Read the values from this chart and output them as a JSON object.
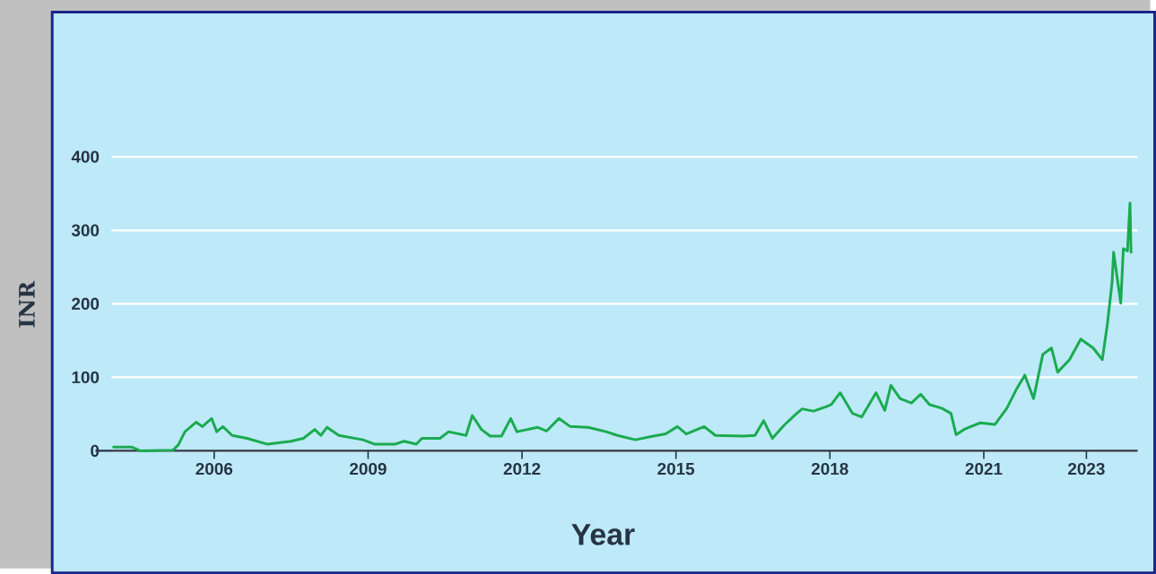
{
  "chart_data": {
    "type": "line",
    "xlabel": "Year",
    "ylabel": "INR",
    "x": [
      2004.04,
      2004.4,
      2004.56,
      2005.2,
      2005.3,
      2005.43,
      2005.65,
      2005.77,
      2005.95,
      2006.05,
      2006.17,
      2006.35,
      2006.64,
      2007.04,
      2007.5,
      2007.74,
      2007.96,
      2008.08,
      2008.2,
      2008.43,
      2008.9,
      2009.13,
      2009.52,
      2009.7,
      2009.94,
      2010.05,
      2010.4,
      2010.57,
      2010.91,
      2011.03,
      2011.21,
      2011.38,
      2011.6,
      2011.78,
      2011.9,
      2012.3,
      2012.48,
      2012.72,
      2012.94,
      2013.29,
      2013.64,
      2013.86,
      2014.21,
      2014.56,
      2014.8,
      2015.03,
      2015.2,
      2015.55,
      2015.77,
      2016.3,
      2016.54,
      2016.71,
      2016.88,
      2017.11,
      2017.34,
      2017.46,
      2017.68,
      2017.93,
      2018.03,
      2018.2,
      2018.44,
      2018.62,
      2018.9,
      2019.07,
      2019.19,
      2019.37,
      2019.59,
      2019.77,
      2019.94,
      2020.18,
      2020.36,
      2020.46,
      2020.64,
      2020.93,
      2021.22,
      2021.45,
      2021.63,
      2021.8,
      2021.97,
      2022.15,
      2022.32,
      2022.44,
      2022.67,
      2022.89,
      2023.13,
      2023.31,
      2023.41,
      2023.5,
      2023.53,
      2023.67,
      2023.72,
      2023.8,
      2023.85,
      2023.87
    ],
    "series": [
      {
        "color": "#1aab4f",
        "values": [
          5,
          5,
          0,
          1,
          8,
          26,
          39,
          33,
          44,
          26,
          33,
          21,
          17,
          9,
          13,
          17,
          29,
          21,
          32,
          21,
          15,
          9,
          9,
          13,
          9,
          17,
          17,
          26,
          21,
          48,
          29,
          20,
          20,
          44,
          26,
          32,
          27,
          44,
          33,
          32,
          26,
          21,
          15,
          20,
          23,
          33,
          23,
          33,
          21,
          20,
          21,
          41,
          17,
          35,
          50,
          57,
          54,
          60,
          63,
          79,
          51,
          46,
          79,
          55,
          89,
          71,
          65,
          77,
          63,
          58,
          51,
          22,
          30,
          38,
          36,
          58,
          83,
          103,
          71,
          131,
          140,
          107,
          124,
          152,
          140,
          124,
          173,
          229,
          270,
          201,
          275,
          272,
          337,
          270
        ]
      }
    ],
    "xlim": [
      2004,
      2024
    ],
    "ylim": [
      0,
      400
    ],
    "xticks": [
      2006,
      2009,
      2012,
      2015,
      2018,
      2021,
      2023
    ],
    "yticks": [
      0,
      100,
      200,
      300,
      400
    ],
    "grid": "y",
    "marker": "none",
    "line_style": "solid"
  }
}
